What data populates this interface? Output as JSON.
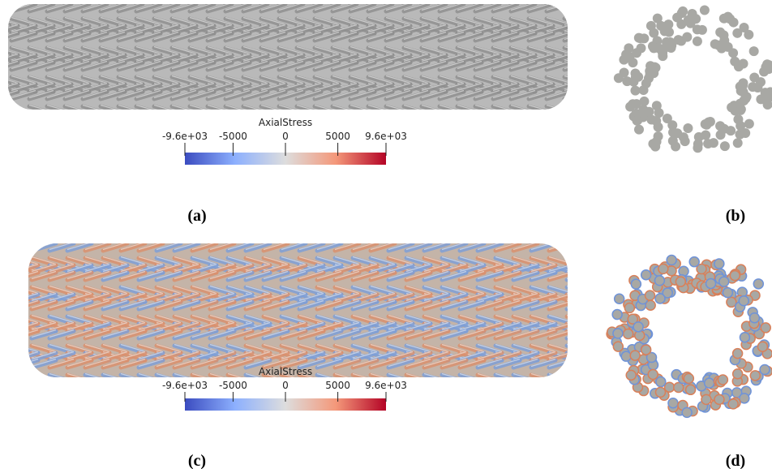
{
  "panels": [
    {
      "caption": "(a)",
      "colorbar": {
        "title": "AxialStress",
        "range": [
          -9600,
          9600
        ],
        "ticks": [
          {
            "value": -9600,
            "label": "-9.6e+03"
          },
          -5000,
          0,
          5000,
          {
            "value": 9600,
            "label": "9.6e+03"
          }
        ]
      }
    },
    {
      "caption": "(b)"
    },
    {
      "caption": "(c)",
      "colorbar": {
        "title": "AxialStress",
        "range": [
          -9600,
          9600
        ],
        "ticks": [
          {
            "value": -9600,
            "label": "-9.6e+03"
          },
          -5000,
          0,
          5000,
          {
            "value": 9600,
            "label": "9.6e+03"
          }
        ]
      }
    },
    {
      "caption": "(d)"
    }
  ]
}
